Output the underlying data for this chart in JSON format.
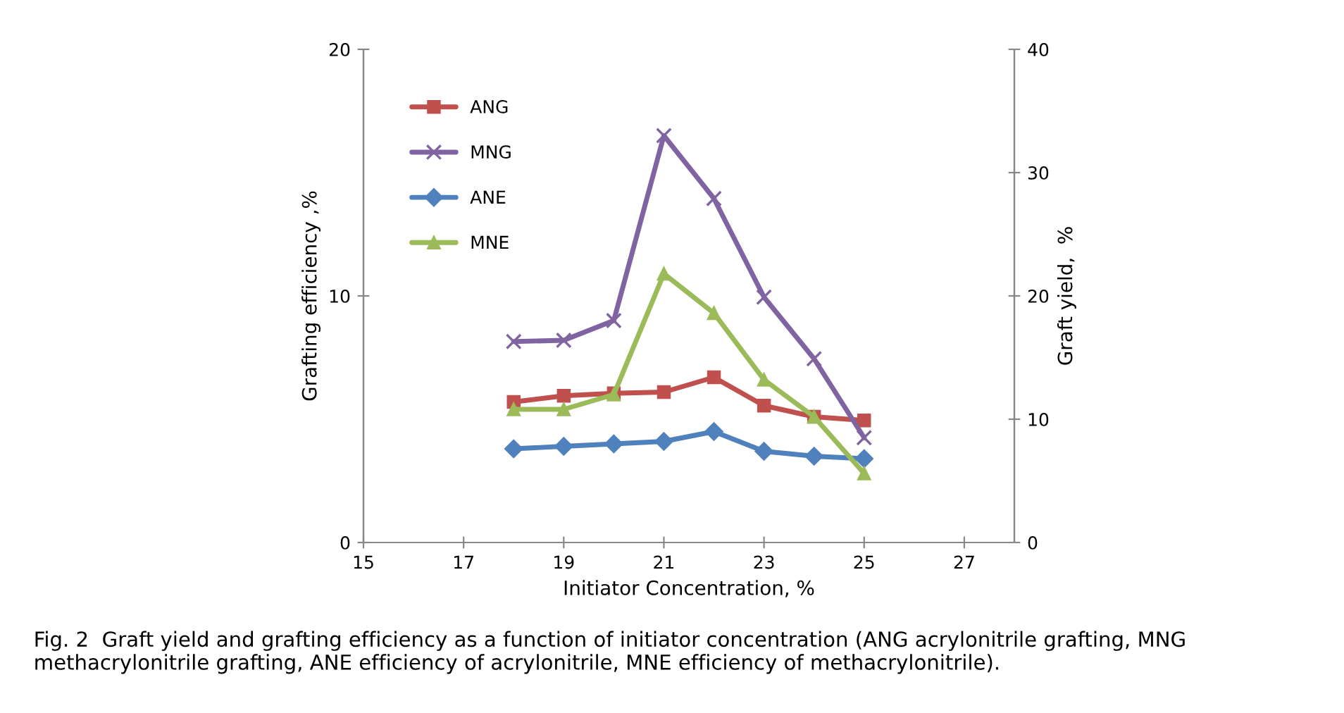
{
  "chart_data": {
    "type": "line",
    "xlabel": "Initiator Concentration, %",
    "ylabel": "Grafting efficiency ,%",
    "y2label": "Graft yield,  %",
    "x": [
      18,
      19,
      20,
      21,
      22,
      23,
      24,
      25
    ],
    "series": [
      {
        "name": "ANG",
        "color": "#c0504d",
        "marker": "square",
        "axis": "y2",
        "values": [
          11.4,
          11.9,
          12.1,
          12.2,
          13.4,
          11.1,
          10.2,
          9.9
        ]
      },
      {
        "name": "MNG",
        "color": "#8064a2",
        "marker": "cross",
        "axis": "y2",
        "values": [
          16.3,
          16.4,
          18.0,
          33.0,
          27.9,
          19.9,
          14.9,
          8.5
        ]
      },
      {
        "name": "ANE",
        "color": "#4f81bd",
        "marker": "diamond",
        "values": [
          3.8,
          3.9,
          4.0,
          4.1,
          4.5,
          3.7,
          3.5,
          3.4
        ]
      },
      {
        "name": "MNE",
        "color": "#9bbb59",
        "marker": "triangle",
        "values": [
          5.4,
          5.4,
          6.0,
          10.9,
          9.3,
          6.6,
          5.1,
          2.8
        ]
      }
    ],
    "xlim": [
      15,
      28
    ],
    "xticks": [
      15,
      17,
      19,
      21,
      23,
      25,
      27
    ],
    "ylim": [
      0,
      20
    ],
    "yticks": [
      0,
      10,
      20
    ],
    "y2lim": [
      0,
      40
    ],
    "y2ticks": [
      0,
      10,
      20,
      30,
      40
    ],
    "grid": false,
    "legend": "top left",
    "line_style": "solid",
    "annotations": [
      "Fig. 2  Graft yield and grafting efficiency as a function of initiator concentration (ANG acrylonitrile grafting, MNG methacrylonitrile grafting, ANE efficiency of acrylonitrile, MNE efficiency of methacrylonitrile)."
    ]
  }
}
